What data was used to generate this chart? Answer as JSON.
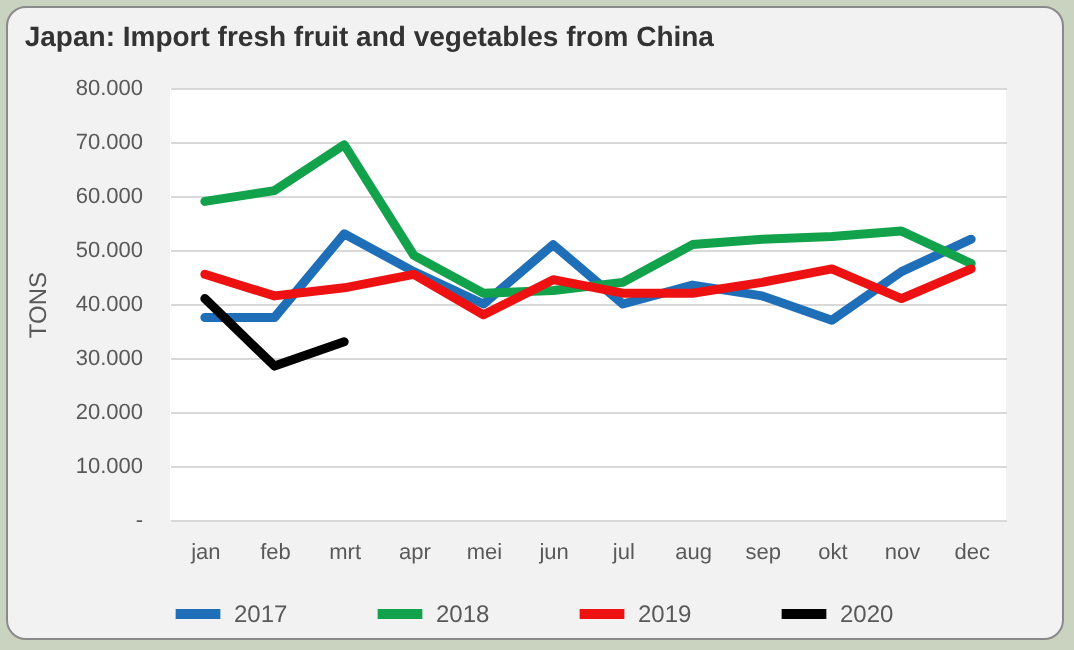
{
  "chart_data": {
    "type": "line",
    "title": "Japan: Import fresh fruit and vegetables from China",
    "ylabel": "TONS",
    "categories": [
      "jan",
      "feb",
      "mrt",
      "apr",
      "mei",
      "jun",
      "jul",
      "aug",
      "sep",
      "okt",
      "nov",
      "dec"
    ],
    "series": [
      {
        "name": "2017",
        "color": "#1f6fb8",
        "values": [
          37500,
          37500,
          53000,
          46000,
          40000,
          51000,
          40000,
          43500,
          41500,
          37000,
          46000,
          52000
        ]
      },
      {
        "name": "2018",
        "color": "#12a24b",
        "values": [
          59000,
          61000,
          69500,
          49000,
          42000,
          42500,
          44000,
          51000,
          52000,
          52500,
          53500,
          47500
        ]
      },
      {
        "name": "2019",
        "color": "#ee1111",
        "values": [
          45500,
          41500,
          43000,
          45500,
          38000,
          44500,
          42000,
          42000,
          44000,
          46500,
          41000,
          46500
        ]
      },
      {
        "name": "2020",
        "color": "#000000",
        "values": [
          41000,
          28500,
          33000,
          null,
          null,
          null,
          null,
          null,
          null,
          null,
          null,
          null
        ]
      }
    ],
    "ylim": [
      0,
      80000
    ],
    "yticks": [
      {
        "value": 0,
        "label": "-"
      },
      {
        "value": 10000,
        "label": "10.000"
      },
      {
        "value": 20000,
        "label": "20.000"
      },
      {
        "value": 30000,
        "label": "30.000"
      },
      {
        "value": 40000,
        "label": "40.000"
      },
      {
        "value": 50000,
        "label": "50.000"
      },
      {
        "value": 60000,
        "label": "60.000"
      },
      {
        "value": 70000,
        "label": "70.000"
      },
      {
        "value": 80000,
        "label": "80.000"
      }
    ],
    "grid": "y",
    "legend": "bottom",
    "marker": "none",
    "line_style": "solid"
  }
}
